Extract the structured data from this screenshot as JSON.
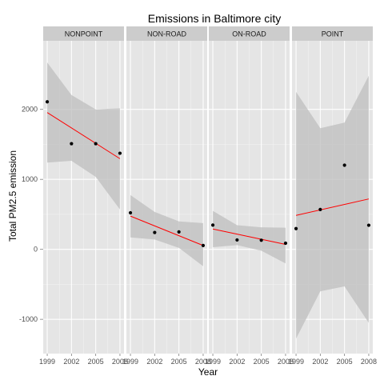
{
  "chart_data": {
    "type": "scatter",
    "title": "Emissions in Baltimore city",
    "xlabel": "Year",
    "ylabel": "Total PM2.5 emission",
    "x_ticks": [
      1999,
      2002,
      2005,
      2008
    ],
    "y_ticks": [
      -1000,
      0,
      1000,
      2000
    ],
    "xlim": [
      1998.5,
      2008.5
    ],
    "ylim": [
      -1490,
      2980
    ],
    "grid": true,
    "facets": [
      {
        "label": "NONPOINT",
        "points": [
          [
            1999,
            2108
          ],
          [
            2002,
            1510
          ],
          [
            2005,
            1510
          ],
          [
            2008,
            1373
          ]
        ],
        "fit": [
          [
            1999,
            1955
          ],
          [
            2008,
            1295
          ]
        ],
        "band_upper": [
          [
            1999,
            2670
          ],
          [
            2002,
            2205
          ],
          [
            2005,
            2000
          ],
          [
            2008,
            2015
          ]
        ],
        "band_lower": [
          [
            1999,
            1240
          ],
          [
            2002,
            1265
          ],
          [
            2005,
            1035
          ],
          [
            2008,
            570
          ]
        ]
      },
      {
        "label": "NON-ROAD",
        "points": [
          [
            1999,
            522
          ],
          [
            2002,
            241
          ],
          [
            2005,
            249
          ],
          [
            2008,
            55
          ]
        ],
        "fit": [
          [
            1999,
            475
          ],
          [
            2008,
            55
          ]
        ],
        "band_upper": [
          [
            1999,
            775
          ],
          [
            2002,
            535
          ],
          [
            2005,
            400
          ],
          [
            2008,
            375
          ]
        ],
        "band_lower": [
          [
            1999,
            170
          ],
          [
            2002,
            140
          ],
          [
            2005,
            20
          ],
          [
            2008,
            -240
          ]
        ]
      },
      {
        "label": "ON-ROAD",
        "points": [
          [
            1999,
            346
          ],
          [
            2002,
            134
          ],
          [
            2005,
            130
          ],
          [
            2008,
            88
          ]
        ],
        "fit": [
          [
            1999,
            290
          ],
          [
            2008,
            70
          ]
        ],
        "band_upper": [
          [
            1999,
            550
          ],
          [
            2002,
            345
          ],
          [
            2005,
            315
          ],
          [
            2008,
            310
          ]
        ],
        "band_lower": [
          [
            1999,
            30
          ],
          [
            2002,
            60
          ],
          [
            2005,
            -20
          ],
          [
            2008,
            -200
          ]
        ]
      },
      {
        "label": "POINT",
        "points": [
          [
            1999,
            296
          ],
          [
            2002,
            569
          ],
          [
            2005,
            1202
          ],
          [
            2008,
            344
          ]
        ],
        "fit": [
          [
            1999,
            485
          ],
          [
            2008,
            720
          ]
        ],
        "band_upper": [
          [
            1999,
            2250
          ],
          [
            2002,
            1730
          ],
          [
            2005,
            1810
          ],
          [
            2008,
            2480
          ]
        ],
        "band_lower": [
          [
            1999,
            -1275
          ],
          [
            2002,
            -600
          ],
          [
            2005,
            -530
          ],
          [
            2008,
            -1050
          ]
        ]
      }
    ],
    "colors": {
      "panel_background": "#e5e5e5",
      "strip_background": "#cccccc",
      "grid_major": "#ffffff",
      "grid_minor": "#f2f2f2",
      "points": "#000000",
      "fit_line": "#ff0000",
      "band_fill": "#bdbdbd"
    }
  }
}
